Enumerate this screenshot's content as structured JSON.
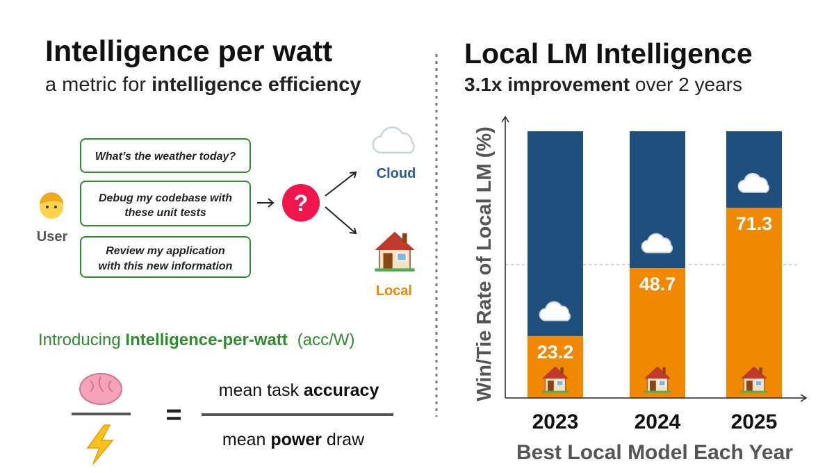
{
  "left": {
    "title": "Intelligence per watt",
    "subtitle": [
      "a metric for ",
      "intelligence efficiency"
    ],
    "queries": [
      [
        "What’s the weather today?"
      ],
      [
        "Debug my codebase with",
        "these unit tests"
      ],
      [
        "Review my application",
        "with this new information"
      ]
    ],
    "user": "User",
    "question": "?",
    "cloud": "Cloud",
    "local": "Local",
    "intro": [
      "Introducing ",
      "Intelligence-per-watt",
      "(acc/W)"
    ],
    "equals": "=",
    "numerator": [
      "mean task ",
      "accuracy"
    ],
    "denominator": [
      "mean ",
      "power",
      " draw"
    ]
  },
  "chart_data": {
    "type": "stacked_bar",
    "title": "Local LM Intelligence",
    "subtitle": [
      "3.1x improvement",
      " over 2 years"
    ],
    "y_label": "Win/Tie Rate of Local LM (%)",
    "x_label": "Best Local Model Each Year",
    "categories": [
      "2023",
      "2024",
      "2025"
    ],
    "series": [
      {
        "color": "#f08800",
        "values": [
          23.2,
          48.7,
          71.3
        ]
      },
      {
        "color": "#1e4f7d",
        "values": [
          76.8,
          51.3,
          28.7
        ]
      }
    ],
    "ylim": [
      0,
      100
    ],
    "reference_line": 50
  }
}
